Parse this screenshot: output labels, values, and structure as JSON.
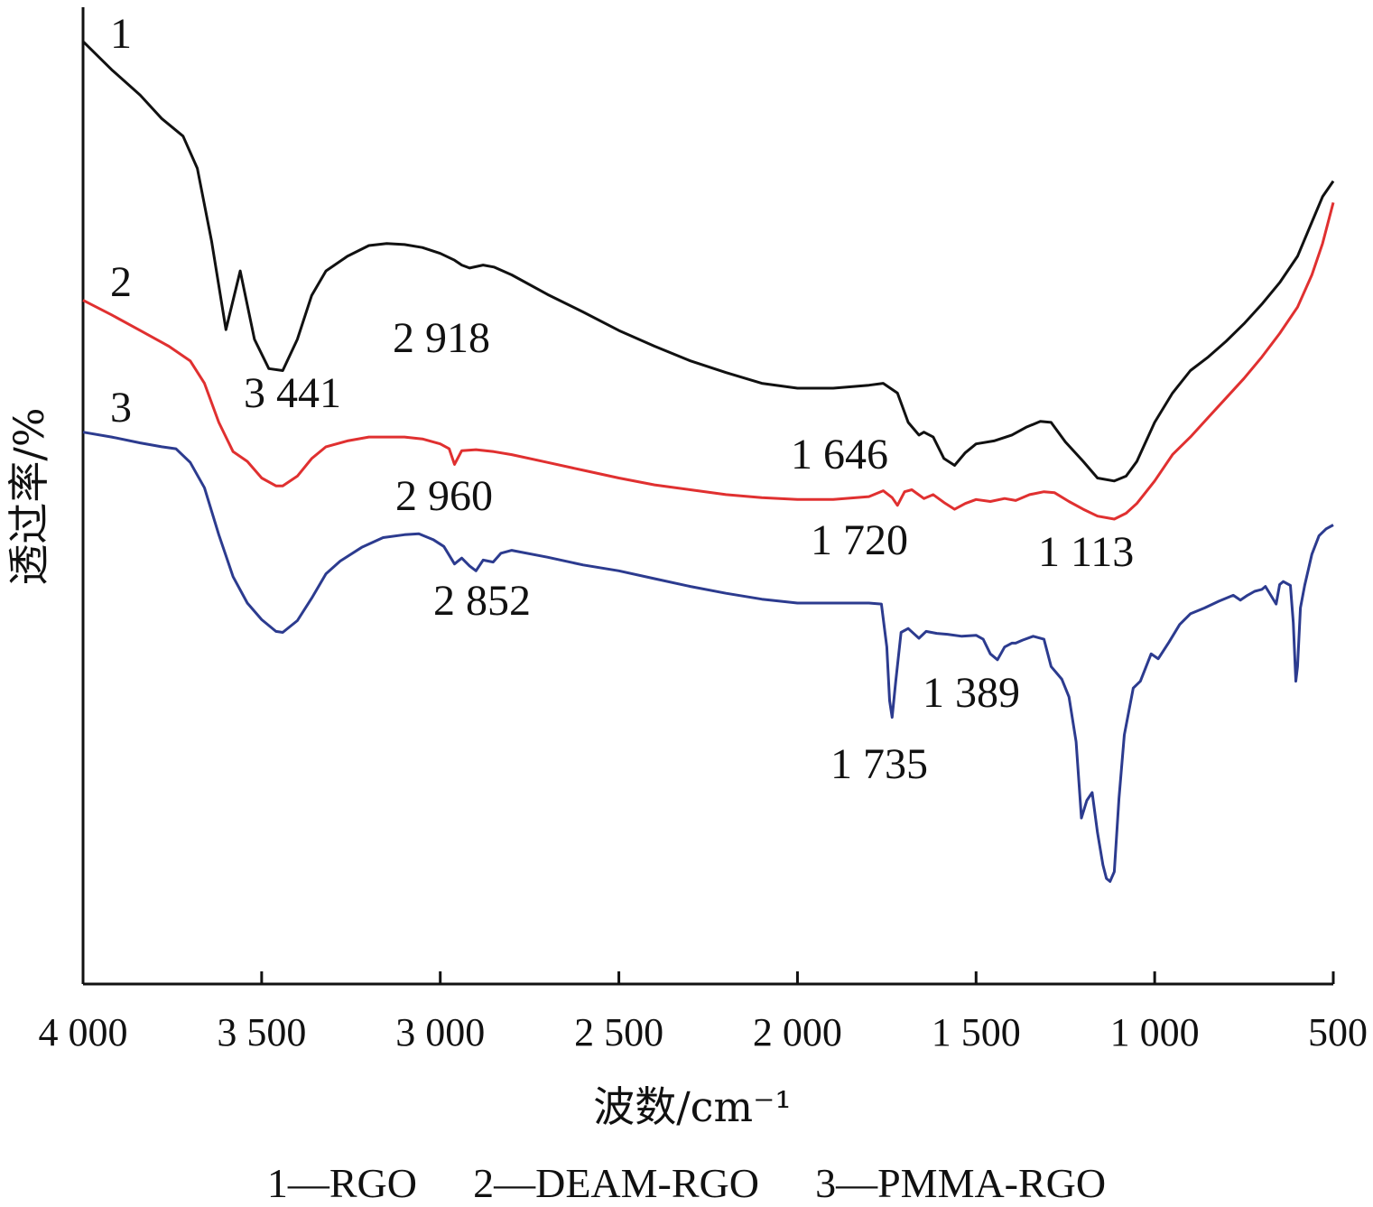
{
  "chart_data": {
    "type": "line",
    "xlabel": "波数/cm⁻¹",
    "ylabel": "透过率/%",
    "xlim": [
      4000,
      500
    ],
    "x_ticks": [
      4000,
      3500,
      3000,
      2500,
      2000,
      1500,
      1000,
      500
    ],
    "x_tick_labels": [
      "4 000",
      "3 500",
      "3 000",
      "2 500",
      "2 000",
      "1 500",
      "1 000",
      "500"
    ],
    "y_ticks_shown": false,
    "ylim": [
      0,
      100
    ],
    "series": [
      {
        "name": "1",
        "color": "#111111",
        "points": [
          [
            4000,
            96.5
          ],
          [
            3920,
            93.6
          ],
          [
            3840,
            91.0
          ],
          [
            3780,
            88.6
          ],
          [
            3720,
            86.8
          ],
          [
            3680,
            83.5
          ],
          [
            3640,
            76.0
          ],
          [
            3600,
            67.0
          ],
          [
            3560,
            73.0
          ],
          [
            3520,
            66.0
          ],
          [
            3480,
            63.0
          ],
          [
            3441,
            62.8
          ],
          [
            3400,
            66.0
          ],
          [
            3360,
            70.5
          ],
          [
            3320,
            73.0
          ],
          [
            3260,
            74.5
          ],
          [
            3200,
            75.6
          ],
          [
            3150,
            75.8
          ],
          [
            3100,
            75.7
          ],
          [
            3050,
            75.4
          ],
          [
            3000,
            74.8
          ],
          [
            2960,
            74.1
          ],
          [
            2940,
            73.6
          ],
          [
            2918,
            73.3
          ],
          [
            2880,
            73.6
          ],
          [
            2850,
            73.4
          ],
          [
            2800,
            72.6
          ],
          [
            2700,
            70.6
          ],
          [
            2600,
            68.8
          ],
          [
            2500,
            66.9
          ],
          [
            2400,
            65.3
          ],
          [
            2300,
            63.8
          ],
          [
            2200,
            62.6
          ],
          [
            2100,
            61.5
          ],
          [
            2000,
            61.0
          ],
          [
            1900,
            61.0
          ],
          [
            1800,
            61.3
          ],
          [
            1760,
            61.5
          ],
          [
            1720,
            60.5
          ],
          [
            1690,
            57.5
          ],
          [
            1660,
            56.2
          ],
          [
            1646,
            56.5
          ],
          [
            1620,
            56.0
          ],
          [
            1590,
            53.8
          ],
          [
            1560,
            53.1
          ],
          [
            1530,
            54.4
          ],
          [
            1500,
            55.3
          ],
          [
            1450,
            55.6
          ],
          [
            1400,
            56.2
          ],
          [
            1360,
            57.0
          ],
          [
            1320,
            57.6
          ],
          [
            1290,
            57.5
          ],
          [
            1250,
            55.5
          ],
          [
            1200,
            53.5
          ],
          [
            1160,
            51.8
          ],
          [
            1113,
            51.5
          ],
          [
            1080,
            52.0
          ],
          [
            1050,
            53.5
          ],
          [
            1000,
            57.5
          ],
          [
            950,
            60.5
          ],
          [
            900,
            62.8
          ],
          [
            850,
            64.2
          ],
          [
            800,
            65.8
          ],
          [
            750,
            67.6
          ],
          [
            700,
            69.6
          ],
          [
            650,
            71.8
          ],
          [
            600,
            74.5
          ],
          [
            560,
            78.0
          ],
          [
            530,
            80.6
          ],
          [
            500,
            82.2
          ]
        ]
      },
      {
        "name": "2",
        "color": "#e03030",
        "points": [
          [
            4000,
            70.0
          ],
          [
            3920,
            68.5
          ],
          [
            3840,
            66.9
          ],
          [
            3760,
            65.3
          ],
          [
            3700,
            63.8
          ],
          [
            3660,
            61.5
          ],
          [
            3620,
            57.5
          ],
          [
            3580,
            54.5
          ],
          [
            3540,
            53.5
          ],
          [
            3500,
            51.8
          ],
          [
            3460,
            51.0
          ],
          [
            3441,
            51.0
          ],
          [
            3400,
            52.0
          ],
          [
            3360,
            53.8
          ],
          [
            3320,
            55.0
          ],
          [
            3260,
            55.6
          ],
          [
            3200,
            56.0
          ],
          [
            3100,
            56.0
          ],
          [
            3050,
            55.8
          ],
          [
            3000,
            55.3
          ],
          [
            2975,
            54.8
          ],
          [
            2960,
            53.2
          ],
          [
            2940,
            54.6
          ],
          [
            2900,
            54.7
          ],
          [
            2850,
            54.5
          ],
          [
            2800,
            54.2
          ],
          [
            2700,
            53.4
          ],
          [
            2600,
            52.6
          ],
          [
            2500,
            51.8
          ],
          [
            2400,
            51.1
          ],
          [
            2300,
            50.6
          ],
          [
            2200,
            50.1
          ],
          [
            2100,
            49.8
          ],
          [
            2000,
            49.6
          ],
          [
            1900,
            49.6
          ],
          [
            1800,
            49.9
          ],
          [
            1760,
            50.5
          ],
          [
            1735,
            49.8
          ],
          [
            1720,
            49.0
          ],
          [
            1700,
            50.4
          ],
          [
            1680,
            50.6
          ],
          [
            1646,
            49.7
          ],
          [
            1620,
            50.1
          ],
          [
            1590,
            49.3
          ],
          [
            1560,
            48.6
          ],
          [
            1530,
            49.2
          ],
          [
            1500,
            49.6
          ],
          [
            1460,
            49.4
          ],
          [
            1420,
            49.7
          ],
          [
            1389,
            49.5
          ],
          [
            1350,
            50.1
          ],
          [
            1310,
            50.4
          ],
          [
            1280,
            50.3
          ],
          [
            1240,
            49.4
          ],
          [
            1200,
            48.6
          ],
          [
            1160,
            47.9
          ],
          [
            1113,
            47.6
          ],
          [
            1080,
            48.2
          ],
          [
            1050,
            49.2
          ],
          [
            1000,
            51.5
          ],
          [
            950,
            54.2
          ],
          [
            900,
            56.0
          ],
          [
            850,
            58.0
          ],
          [
            800,
            60.0
          ],
          [
            750,
            62.0
          ],
          [
            700,
            64.2
          ],
          [
            650,
            66.6
          ],
          [
            600,
            69.3
          ],
          [
            560,
            72.6
          ],
          [
            530,
            75.8
          ],
          [
            500,
            80.0
          ]
        ]
      },
      {
        "name": "3",
        "color": "#2c3b8f",
        "points": [
          [
            4000,
            56.5
          ],
          [
            3920,
            56.0
          ],
          [
            3840,
            55.4
          ],
          [
            3780,
            55.0
          ],
          [
            3740,
            54.8
          ],
          [
            3700,
            53.4
          ],
          [
            3660,
            50.8
          ],
          [
            3620,
            46.0
          ],
          [
            3580,
            41.7
          ],
          [
            3540,
            39.0
          ],
          [
            3500,
            37.3
          ],
          [
            3460,
            36.1
          ],
          [
            3441,
            36.0
          ],
          [
            3400,
            37.2
          ],
          [
            3360,
            39.5
          ],
          [
            3320,
            42.0
          ],
          [
            3280,
            43.3
          ],
          [
            3220,
            44.7
          ],
          [
            3160,
            45.7
          ],
          [
            3100,
            46.0
          ],
          [
            3060,
            46.1
          ],
          [
            3020,
            45.5
          ],
          [
            2990,
            44.8
          ],
          [
            2960,
            43.0
          ],
          [
            2940,
            43.6
          ],
          [
            2918,
            42.8
          ],
          [
            2900,
            42.3
          ],
          [
            2880,
            43.4
          ],
          [
            2852,
            43.2
          ],
          [
            2830,
            44.1
          ],
          [
            2800,
            44.4
          ],
          [
            2700,
            43.7
          ],
          [
            2600,
            42.9
          ],
          [
            2500,
            42.3
          ],
          [
            2400,
            41.5
          ],
          [
            2300,
            40.7
          ],
          [
            2200,
            40.0
          ],
          [
            2100,
            39.4
          ],
          [
            2000,
            39.0
          ],
          [
            1900,
            39.0
          ],
          [
            1800,
            39.0
          ],
          [
            1765,
            38.9
          ],
          [
            1750,
            34.5
          ],
          [
            1742,
            29.0
          ],
          [
            1735,
            27.3
          ],
          [
            1725,
            31.0
          ],
          [
            1710,
            36.0
          ],
          [
            1690,
            36.4
          ],
          [
            1660,
            35.4
          ],
          [
            1640,
            36.1
          ],
          [
            1610,
            35.9
          ],
          [
            1580,
            35.8
          ],
          [
            1540,
            35.6
          ],
          [
            1500,
            35.7
          ],
          [
            1480,
            35.3
          ],
          [
            1460,
            33.8
          ],
          [
            1440,
            33.2
          ],
          [
            1420,
            34.5
          ],
          [
            1400,
            34.9
          ],
          [
            1389,
            34.9
          ],
          [
            1370,
            35.2
          ],
          [
            1340,
            35.6
          ],
          [
            1310,
            35.3
          ],
          [
            1290,
            32.5
          ],
          [
            1260,
            31.2
          ],
          [
            1240,
            29.4
          ],
          [
            1220,
            24.8
          ],
          [
            1205,
            17.0
          ],
          [
            1190,
            18.8
          ],
          [
            1175,
            19.6
          ],
          [
            1160,
            15.5
          ],
          [
            1145,
            12.2
          ],
          [
            1135,
            10.8
          ],
          [
            1125,
            10.5
          ],
          [
            1113,
            11.5
          ],
          [
            1100,
            19.0
          ],
          [
            1085,
            25.5
          ],
          [
            1060,
            30.3
          ],
          [
            1040,
            31.0
          ],
          [
            1010,
            33.8
          ],
          [
            990,
            33.3
          ],
          [
            960,
            35.0
          ],
          [
            930,
            36.8
          ],
          [
            900,
            37.9
          ],
          [
            860,
            38.5
          ],
          [
            820,
            39.2
          ],
          [
            780,
            39.8
          ],
          [
            760,
            39.3
          ],
          [
            740,
            39.8
          ],
          [
            720,
            40.2
          ],
          [
            700,
            40.4
          ],
          [
            690,
            40.7
          ],
          [
            680,
            40.1
          ],
          [
            660,
            38.9
          ],
          [
            650,
            40.9
          ],
          [
            640,
            41.2
          ],
          [
            620,
            40.8
          ],
          [
            612,
            37.0
          ],
          [
            605,
            31.0
          ],
          [
            600,
            32.5
          ],
          [
            592,
            38.5
          ],
          [
            580,
            40.8
          ],
          [
            560,
            44.0
          ],
          [
            540,
            45.9
          ],
          [
            520,
            46.6
          ],
          [
            500,
            47.0
          ]
        ]
      }
    ],
    "annotations": [
      {
        "text": "3 441"
      },
      {
        "text": "2 918"
      },
      {
        "text": "2 960"
      },
      {
        "text": "2 852"
      },
      {
        "text": "1 646"
      },
      {
        "text": "1 720"
      },
      {
        "text": "1 113"
      },
      {
        "text": "1 389"
      },
      {
        "text": "1 735"
      }
    ],
    "legend": {
      "placement": "bottom",
      "items": [
        "1—RGO",
        "2—DEAM-RGO",
        "3—PMMA-RGO"
      ]
    }
  }
}
